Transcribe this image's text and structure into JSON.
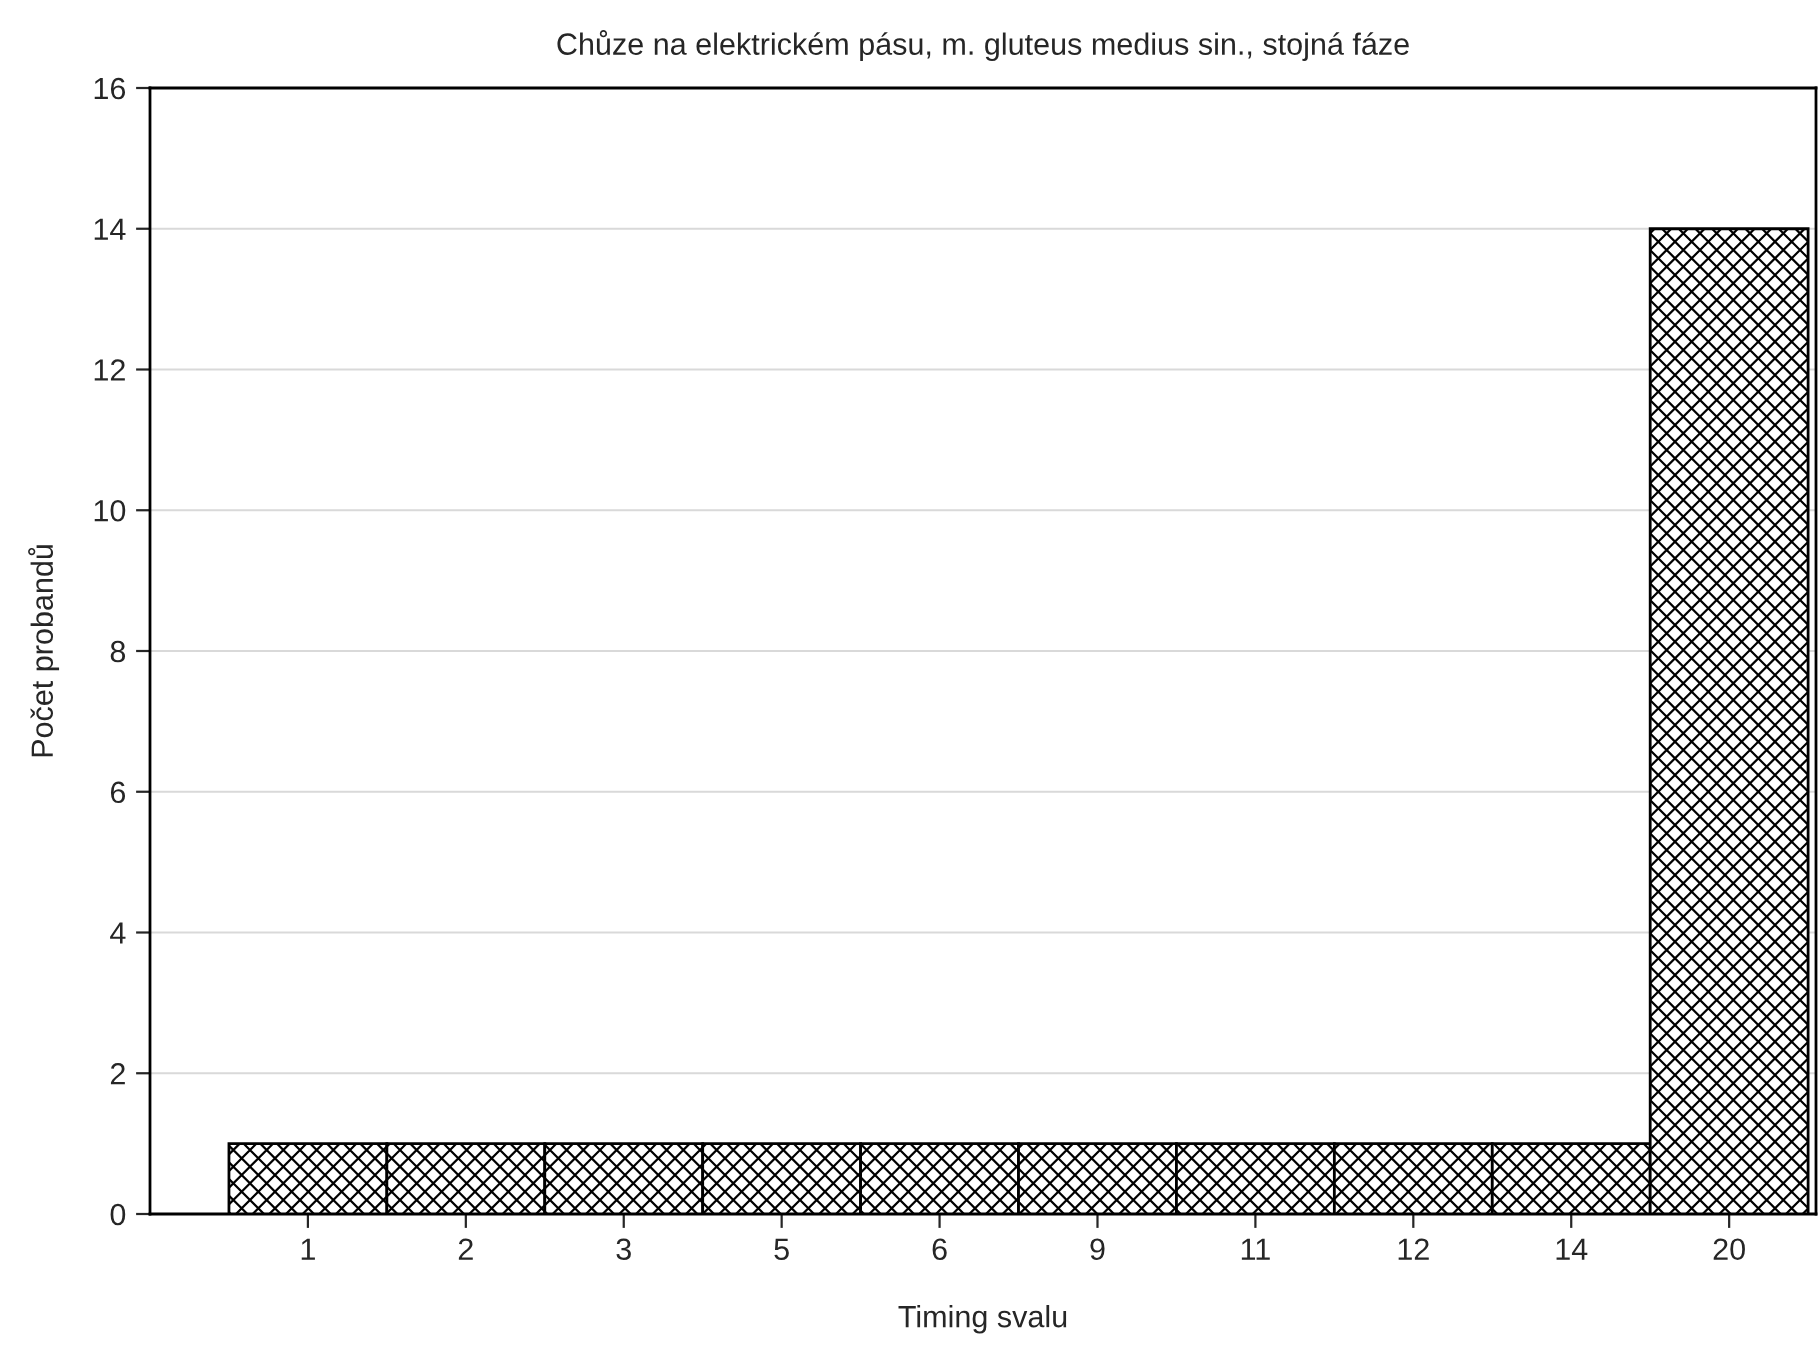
{
  "chart_data": {
    "type": "bar",
    "title": "Chůze na elektrickém pásu, m. gluteus medius sin., stojná fáze",
    "xlabel": "Timing svalu",
    "ylabel": "Počet probandů",
    "categories": [
      "1",
      "2",
      "3",
      "5",
      "6",
      "9",
      "11",
      "12",
      "14",
      "20"
    ],
    "values": [
      1,
      1,
      1,
      1,
      1,
      1,
      1,
      1,
      1,
      14
    ],
    "color": "#000000",
    "ylim": [
      0,
      16
    ],
    "yticks": [
      0,
      2,
      4,
      6,
      8,
      10,
      12,
      14,
      16
    ],
    "grid": "y"
  }
}
